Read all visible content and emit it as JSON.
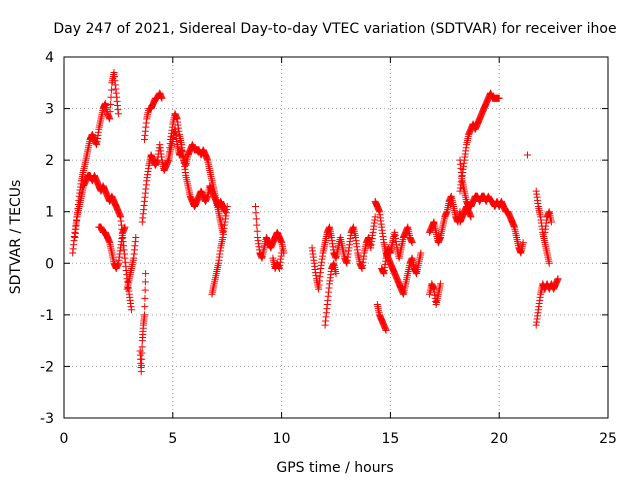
{
  "chart_data": {
    "type": "scatter",
    "title": "Day 247 of 2021, Sidereal Day-to-day VTEC variation (SDTVAR) for receiver ihoe",
    "xlabel": "GPS time / hours",
    "ylabel": "SDTVAR / TECUs",
    "xlim": [
      0,
      25
    ],
    "ylim": [
      -3,
      4
    ],
    "xticks": [
      0,
      5,
      10,
      15,
      20,
      25
    ],
    "yticks": [
      -3,
      -2,
      -1,
      0,
      1,
      2,
      3,
      4
    ],
    "grid": true,
    "marker": "+",
    "color": "#ff0000",
    "series": [
      {
        "name": "SDTVAR",
        "segments": [
          {
            "x": [
              0.4,
              0.5,
              0.6,
              0.7,
              0.8,
              0.9,
              1.0,
              1.1,
              1.2,
              1.3,
              1.4,
              1.5,
              1.6,
              1.7,
              1.8,
              1.9,
              2.0,
              2.1,
              2.2,
              2.3,
              2.4,
              2.5,
              2.6,
              2.7,
              2.8,
              2.9,
              3.0,
              3.1
            ],
            "y": [
              0.2,
              0.6,
              0.9,
              1.1,
              1.3,
              1.5,
              1.6,
              1.7,
              1.7,
              1.6,
              1.7,
              1.6,
              1.5,
              1.4,
              1.5,
              1.4,
              1.3,
              1.2,
              1.3,
              1.2,
              1.1,
              1.0,
              0.9,
              0.5,
              0.1,
              -0.3,
              -0.6,
              -0.9
            ]
          },
          {
            "x": [
              0.5,
              0.6,
              0.7,
              0.8,
              0.9,
              1.0,
              1.1,
              1.2,
              1.3,
              1.4,
              1.5,
              1.6,
              1.7,
              1.8,
              1.9,
              2.0,
              2.1,
              2.2,
              2.3,
              2.4,
              2.5
            ],
            "y": [
              0.5,
              0.9,
              1.3,
              1.6,
              1.8,
              2.0,
              2.2,
              2.4,
              2.5,
              2.4,
              2.3,
              2.6,
              2.8,
              3.0,
              3.1,
              2.9,
              2.8,
              3.5,
              3.7,
              3.3,
              2.9
            ]
          },
          {
            "x": [
              1.6,
              1.7,
              1.8,
              1.9,
              2.0,
              2.1,
              2.2,
              2.3,
              2.4,
              2.5,
              2.6,
              2.7,
              2.8
            ],
            "y": [
              0.7,
              0.7,
              0.6,
              0.6,
              0.5,
              0.4,
              0.2,
              0.0,
              -0.1,
              0.0,
              0.3,
              0.6,
              0.7
            ]
          },
          {
            "x": [
              2.9,
              3.0,
              3.1,
              3.2,
              3.3
            ],
            "y": [
              -0.5,
              -0.3,
              -0.1,
              0.1,
              0.5
            ]
          },
          {
            "x": [
              3.5,
              3.55,
              3.6,
              3.65,
              3.7,
              3.75
            ],
            "y": [
              -1.7,
              -2.1,
              -1.5,
              -1.2,
              -1.0,
              -0.2
            ]
          },
          {
            "x": [
              3.6,
              3.7,
              3.8,
              3.9,
              4.0,
              4.1,
              4.2,
              4.3,
              4.4,
              4.5,
              4.6,
              4.7,
              4.8,
              4.9,
              5.0,
              5.1,
              5.2,
              5.3,
              5.4,
              5.5,
              5.6,
              5.7,
              5.8,
              5.9,
              6.0,
              6.1,
              6.2,
              6.3,
              6.4,
              6.5,
              6.6,
              6.7,
              6.8,
              6.9,
              7.0,
              7.1,
              7.2,
              7.3
            ],
            "y": [
              0.8,
              1.2,
              1.6,
              1.9,
              2.1,
              2.0,
              1.9,
              2.0,
              2.3,
              2.0,
              1.8,
              1.9,
              2.0,
              2.2,
              2.4,
              2.6,
              2.3,
              2.1,
              2.2,
              2.0,
              1.9,
              2.1,
              2.2,
              2.3,
              2.2,
              2.2,
              2.2,
              2.1,
              2.2,
              2.1,
              2.0,
              1.8,
              1.6,
              1.4,
              1.2,
              1.0,
              0.8,
              0.6
            ]
          },
          {
            "x": [
              3.7,
              3.8,
              3.9,
              4.0,
              4.1,
              4.2,
              4.3,
              4.4,
              4.5
            ],
            "y": [
              2.4,
              2.8,
              3.0,
              3.0,
              3.1,
              3.2,
              3.2,
              3.3,
              3.2
            ]
          },
          {
            "x": [
              4.8,
              4.9,
              5.0,
              5.1,
              5.2,
              5.3,
              5.4,
              5.5,
              5.6,
              5.7,
              5.8,
              5.9,
              6.0,
              6.1,
              6.2,
              6.3,
              6.4,
              6.5,
              6.6,
              6.7,
              6.8,
              6.9,
              7.0,
              7.1,
              7.2,
              7.3,
              7.4
            ],
            "y": [
              2.0,
              2.4,
              2.7,
              2.9,
              2.8,
              2.5,
              2.3,
              2.0,
              1.7,
              1.5,
              1.3,
              1.2,
              1.1,
              1.2,
              1.3,
              1.4,
              1.3,
              1.2,
              1.3,
              1.5,
              1.4,
              1.3,
              1.2,
              1.1,
              1.2,
              1.1,
              1.0
            ]
          },
          {
            "x": [
              6.8,
              6.9,
              7.0,
              7.1,
              7.2,
              7.3,
              7.4,
              7.5
            ],
            "y": [
              -0.6,
              -0.4,
              -0.2,
              0.0,
              0.3,
              0.5,
              0.8,
              1.1
            ]
          },
          {
            "x": [
              8.8,
              8.9,
              9.0,
              9.1,
              9.2,
              9.3,
              9.4,
              9.5,
              9.6,
              9.7,
              9.8,
              9.9,
              10.0,
              10.1
            ],
            "y": [
              1.1,
              0.5,
              0.2,
              0.1,
              0.3,
              0.5,
              0.4,
              0.3,
              0.4,
              0.5,
              0.6,
              0.5,
              0.4,
              0.2
            ]
          },
          {
            "x": [
              9.6,
              9.7,
              9.8,
              9.9,
              10.0
            ],
            "y": [
              0.1,
              -0.1,
              0.0,
              -0.1,
              0.2
            ]
          },
          {
            "x": [
              11.4,
              11.5,
              11.6,
              11.7,
              11.8,
              11.9,
              12.0,
              12.1,
              12.2,
              12.3,
              12.4,
              12.5,
              12.6,
              12.7,
              12.8,
              12.9,
              13.0,
              13.1,
              13.2,
              13.3,
              13.4,
              13.5,
              13.6,
              13.7,
              13.8,
              13.9,
              14.0,
              14.1,
              14.2,
              14.3
            ],
            "y": [
              0.3,
              0.0,
              -0.3,
              -0.5,
              -0.1,
              0.2,
              0.4,
              0.6,
              0.7,
              0.5,
              0.2,
              0.1,
              0.3,
              0.5,
              0.3,
              0.1,
              0.0,
              0.3,
              0.6,
              0.7,
              0.5,
              0.2,
              0.0,
              -0.1,
              0.2,
              0.4,
              0.5,
              0.3,
              0.6,
              0.9
            ]
          },
          {
            "x": [
              12.0,
              12.1,
              12.2,
              12.3,
              12.4,
              12.5
            ],
            "y": [
              -1.2,
              -0.8,
              -0.4,
              -0.1,
              0.0,
              -0.2
            ]
          },
          {
            "x": [
              14.4,
              14.5,
              14.6,
              14.7,
              14.8
            ],
            "y": [
              -0.8,
              -1.0,
              -1.1,
              -1.2,
              -1.3
            ]
          },
          {
            "x": [
              14.3,
              14.4,
              14.5,
              14.6,
              14.7,
              14.8,
              14.9,
              15.0,
              15.1,
              15.2,
              15.3,
              15.4,
              15.5,
              15.6,
              15.7,
              15.8,
              15.9,
              16.0,
              16.1,
              16.2,
              16.3,
              16.4
            ],
            "y": [
              1.2,
              1.1,
              1.0,
              0.7,
              0.4,
              0.2,
              0.1,
              0.0,
              -0.1,
              -0.2,
              -0.3,
              -0.4,
              -0.5,
              -0.6,
              -0.4,
              -0.2,
              0.0,
              0.1,
              -0.1,
              -0.2,
              0.0,
              0.2
            ]
          },
          {
            "x": [
              14.6,
              14.7,
              14.8,
              14.9,
              15.0,
              15.1,
              15.2,
              15.3,
              15.4,
              15.5,
              15.6,
              15.7,
              15.8,
              15.9,
              16.0
            ],
            "y": [
              -0.1,
              -0.2,
              0.1,
              0.3,
              0.2,
              0.4,
              0.6,
              0.3,
              0.1,
              0.3,
              0.5,
              0.6,
              0.7,
              0.5,
              0.4
            ]
          },
          {
            "x": [
              16.8,
              16.9,
              17.0,
              17.1,
              17.2,
              17.3,
              17.4,
              17.5,
              17.6,
              17.7,
              17.8,
              17.9,
              18.0,
              18.1,
              18.2
            ],
            "y": [
              0.6,
              0.7,
              0.8,
              0.6,
              0.4,
              0.5,
              0.7,
              0.9,
              1.0,
              1.2,
              1.3,
              1.1,
              0.9,
              0.8,
              1.0
            ]
          },
          {
            "x": [
              16.8,
              16.9,
              17.0,
              17.1,
              17.2,
              17.3
            ],
            "y": [
              -0.6,
              -0.4,
              -0.5,
              -0.8,
              -0.6,
              -0.4
            ]
          },
          {
            "x": [
              18.2,
              18.3,
              18.4,
              18.5,
              18.6,
              18.7,
              18.8,
              18.9,
              19.0,
              19.1,
              19.2,
              19.3,
              19.4,
              19.5,
              19.6,
              19.7,
              19.8,
              19.9,
              20.0
            ],
            "y": [
              1.4,
              1.7,
              2.0,
              2.3,
              2.5,
              2.6,
              2.7,
              2.6,
              2.7,
              2.8,
              2.9,
              3.0,
              3.1,
              3.2,
              3.3,
              3.2,
              3.2,
              3.2,
              3.2
            ]
          },
          {
            "x": [
              18.2,
              18.3,
              18.4,
              18.5,
              18.6,
              18.7,
              18.8,
              18.9,
              19.0,
              19.1,
              19.2,
              19.3,
              19.4,
              19.5,
              19.6,
              19.7,
              19.8,
              19.9,
              20.0,
              20.1,
              20.2,
              20.3,
              20.4,
              20.5,
              20.6,
              20.7,
              20.8,
              20.9,
              21.0,
              21.1
            ],
            "y": [
              2.0,
              1.6,
              1.4,
              1.2,
              1.1,
              1.1,
              1.2,
              1.3,
              1.3,
              1.2,
              1.3,
              1.3,
              1.2,
              1.3,
              1.2,
              1.2,
              1.1,
              1.2,
              1.1,
              1.2,
              1.1,
              1.0,
              1.0,
              0.9,
              0.8,
              0.7,
              0.5,
              0.3,
              0.2,
              0.4
            ]
          },
          {
            "x": [
              18.2,
              18.3,
              18.4,
              18.5,
              18.6,
              18.7
            ],
            "y": [
              0.8,
              0.9,
              1.0,
              1.1,
              1.0,
              0.9
            ]
          },
          {
            "x": [
              21.3
            ],
            "y": [
              2.1
            ]
          },
          {
            "x": [
              21.7,
              21.8,
              21.9,
              22.0,
              22.1,
              22.2,
              22.3
            ],
            "y": [
              1.4,
              1.1,
              0.9,
              0.6,
              0.4,
              0.2,
              0.0
            ]
          },
          {
            "x": [
              21.7,
              21.8,
              21.9,
              22.0,
              22.1,
              22.2,
              22.3,
              22.4,
              22.5,
              22.6,
              22.7
            ],
            "y": [
              -1.2,
              -0.9,
              -0.6,
              -0.4,
              -0.5,
              -0.4,
              -0.5,
              -0.4,
              -0.5,
              -0.4,
              -0.3
            ]
          },
          {
            "x": [
              22.1,
              22.2,
              22.3,
              22.4
            ],
            "y": [
              0.6,
              0.9,
              1.0,
              0.8
            ]
          }
        ]
      }
    ]
  }
}
